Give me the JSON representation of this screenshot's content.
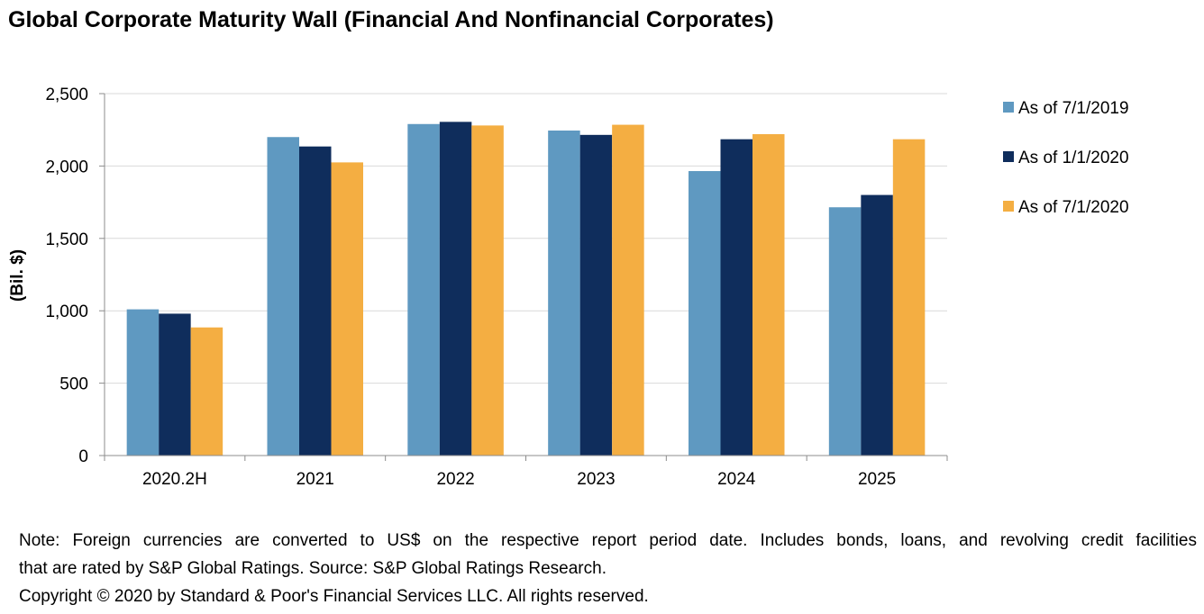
{
  "chart_data": {
    "type": "bar",
    "title": "Global Corporate Maturity Wall (Financial And Nonfinancial Corporates)",
    "ylabel": "(Bil. $)",
    "xlabel": "",
    "categories": [
      "2020.2H",
      "2021",
      "2022",
      "2023",
      "2024",
      "2025"
    ],
    "series": [
      {
        "name": "As of 7/1/2019",
        "color": "#5f99c1",
        "values": [
          1010,
          2200,
          2290,
          2245,
          1965,
          1715
        ]
      },
      {
        "name": "As of 1/1/2020",
        "color": "#0f2d5c",
        "values": [
          980,
          2135,
          2305,
          2215,
          2185,
          1800
        ]
      },
      {
        "name": "As of 7/1/2020",
        "color": "#f4ae42",
        "values": [
          885,
          2025,
          2280,
          2285,
          2220,
          2185
        ]
      }
    ],
    "ylim": [
      0,
      2500
    ],
    "yticks": [
      0,
      500,
      1000,
      1500,
      2000,
      2500
    ],
    "ytick_labels": [
      "0",
      "500",
      "1,000",
      "1,500",
      "2,000",
      "2,500"
    ],
    "grid": true,
    "legend": "right"
  },
  "notes": {
    "line1": "Note: Foreign currencies are converted to US$ on the respective report period date. Includes bonds, loans, and revolving credit facilities",
    "line2": "that are rated by S&P Global Ratings. Source: S&P Global Ratings Research.",
    "copyright": "Copyright © 2020 by Standard & Poor's Financial Services LLC. All rights reserved."
  }
}
